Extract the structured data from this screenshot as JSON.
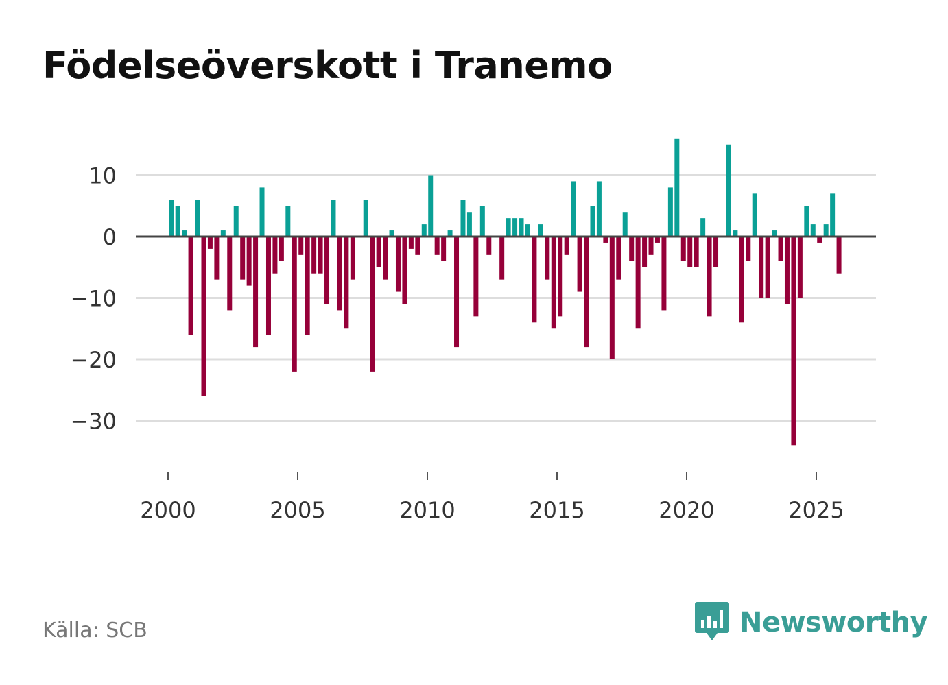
{
  "header": {
    "title": "Födelseöverskott i Tranemo"
  },
  "footer": {
    "source": "Källa: SCB",
    "brand": "Newsworthy"
  },
  "colors": {
    "positive": "#0aa096",
    "negative": "#960039",
    "grid": "#dddddd",
    "zero_line": "#444444",
    "axis_text": "#333333",
    "brand": "#3a9e96"
  },
  "icons": {
    "brand_logo": "newsworthy-logo-icon"
  },
  "chart_data": {
    "type": "bar",
    "title": "Födelseöverskott i Tranemo",
    "xlabel": "",
    "ylabel": "",
    "xlim": [
      1999,
      2027.5
    ],
    "ylim": [
      -38,
      18
    ],
    "yticks": [
      10,
      0,
      -10,
      -20,
      -30
    ],
    "ytick_labels": [
      "10",
      "0",
      "−10",
      "−20",
      "−30"
    ],
    "xticks": [
      2000,
      2005,
      2010,
      2015,
      2020,
      2025
    ],
    "xtick_labels": [
      "2000",
      "2005",
      "2010",
      "2015",
      "2020",
      "2025"
    ],
    "x_start": 2000.125,
    "x_step": 0.25,
    "period": "quarterly",
    "values": [
      6,
      5,
      1,
      -16,
      6,
      -26,
      -2,
      -7,
      1,
      -12,
      5,
      -7,
      -8,
      -18,
      8,
      -16,
      -6,
      -4,
      5,
      -22,
      -3,
      -16,
      -6,
      -6,
      -11,
      6,
      -12,
      -15,
      -7,
      0,
      6,
      -22,
      -5,
      -7,
      1,
      -9,
      -11,
      -2,
      -3,
      2,
      10,
      -3,
      -4,
      1,
      -18,
      6,
      4,
      -13,
      5,
      -3,
      0,
      -7,
      3,
      3,
      3,
      2,
      -14,
      2,
      -7,
      -15,
      -13,
      -3,
      9,
      -9,
      -18,
      5,
      9,
      -1,
      -20,
      -7,
      4,
      -4,
      -15,
      -5,
      -3,
      -1,
      -12,
      8,
      16,
      -4,
      -5,
      -5,
      3,
      -13,
      -5,
      0,
      15,
      1,
      -14,
      -4,
      7,
      -10,
      -10,
      1,
      -4,
      -11,
      -34,
      -10,
      5,
      2,
      -1,
      2,
      7,
      -6
    ]
  }
}
